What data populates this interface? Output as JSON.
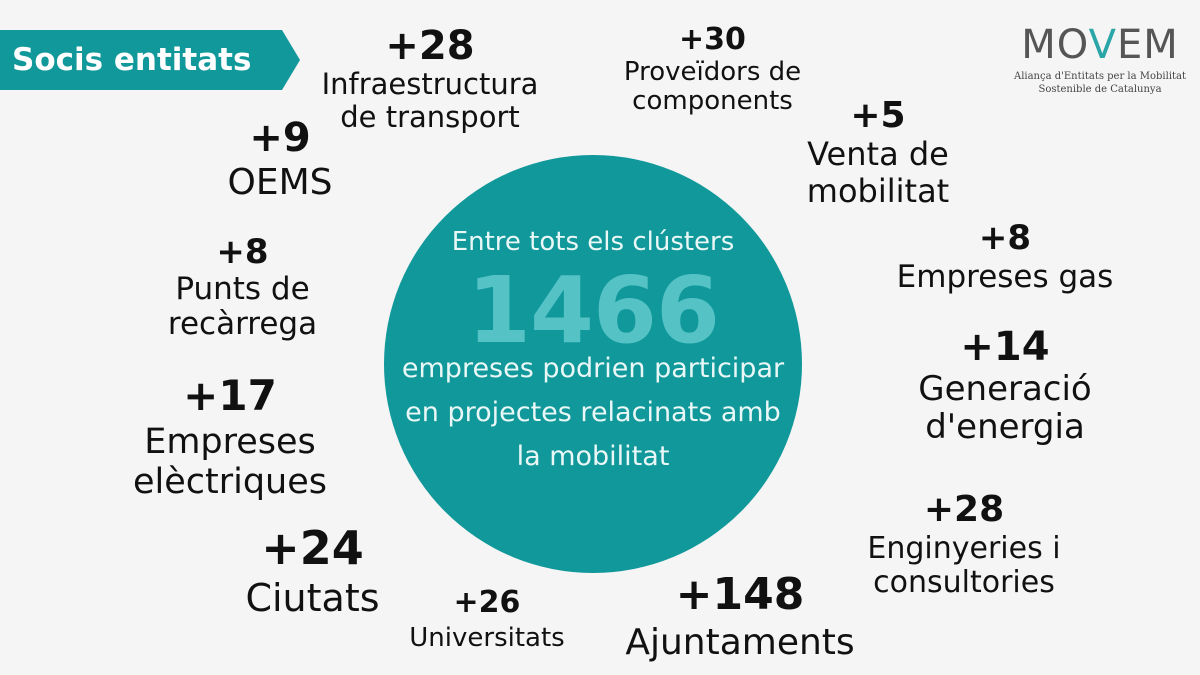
{
  "banner": {
    "title": "Socis entitats",
    "color": "#11989a"
  },
  "logo": {
    "word_start": "MO",
    "word_v": "V",
    "word_end": "EM",
    "subtitle_line1": "Aliança d'Entitats per la Mobilitat",
    "subtitle_line2": "Sostenible de Catalunya"
  },
  "center": {
    "intro": "Entre tots els clústers",
    "total": "1466",
    "text_line1": "empreses podrien participar",
    "text_line2": "en projectes relacinats amb",
    "text_line3": "la mobilitat",
    "color": "#11989a"
  },
  "categories": [
    {
      "number": "+28",
      "label1": "Infraestructura",
      "label2": "de transport"
    },
    {
      "number": "+30",
      "label1": "Proveïdors de",
      "label2": "components"
    },
    {
      "number": "+5",
      "label1": "Venta de",
      "label2": "mobilitat"
    },
    {
      "number": "+9",
      "label1": "OEMS",
      "label2": ""
    },
    {
      "number": "+8",
      "label1": "Punts de",
      "label2": "recàrrega"
    },
    {
      "number": "+8",
      "label1": "Empreses gas",
      "label2": ""
    },
    {
      "number": "+14",
      "label1": "Generació",
      "label2": "d'energia"
    },
    {
      "number": "+17",
      "label1": "Empreses",
      "label2": "elèctriques"
    },
    {
      "number": "+28",
      "label1": "Enginyeries i",
      "label2": "consultories"
    },
    {
      "number": "+24",
      "label1": "Ciutats",
      "label2": ""
    },
    {
      "number": "+26",
      "label1": "Universitats",
      "label2": ""
    },
    {
      "number": "+148",
      "label1": "Ajuntaments",
      "label2": ""
    }
  ]
}
